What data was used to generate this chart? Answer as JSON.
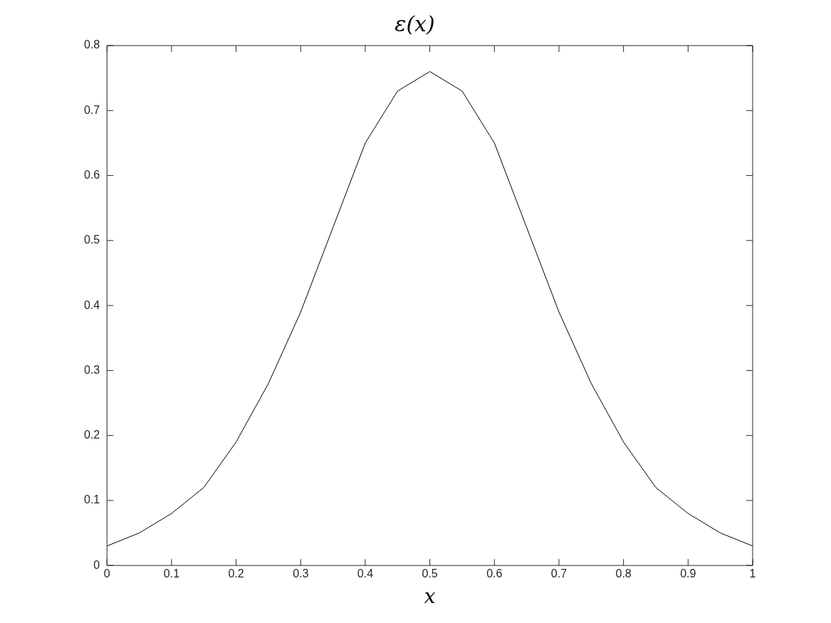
{
  "chart_data": {
    "type": "line",
    "title": "ε(x)",
    "xlabel": "x",
    "x": [
      0,
      0.05,
      0.1,
      0.15,
      0.2,
      0.25,
      0.3,
      0.35,
      0.4,
      0.45,
      0.5,
      0.55,
      0.6,
      0.65,
      0.7,
      0.75,
      0.8,
      0.85,
      0.9,
      0.95,
      1
    ],
    "series": [
      {
        "color": "#000000",
        "values": [
          0.03,
          0.05,
          0.08,
          0.12,
          0.19,
          0.28,
          0.39,
          0.52,
          0.65,
          0.73,
          0.76,
          0.73,
          0.65,
          0.52,
          0.39,
          0.28,
          0.19,
          0.12,
          0.08,
          0.05,
          0.03
        ]
      }
    ],
    "xlim": [
      0,
      1
    ],
    "xticks": [
      0,
      0.1,
      0.2,
      0.3,
      0.4,
      0.5,
      0.6,
      0.7,
      0.8,
      0.9,
      1
    ],
    "ylim": [
      0,
      0.8
    ],
    "yticks": [
      0,
      0.1,
      0.2,
      0.3,
      0.4,
      0.5,
      0.6,
      0.7,
      0.8
    ],
    "grid": false,
    "legend": false,
    "marker": "none",
    "line_style": "solid"
  }
}
